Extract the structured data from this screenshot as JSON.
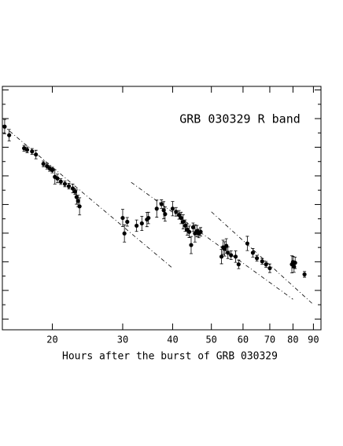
{
  "chart_data": {
    "type": "scatter",
    "title": "GRB 030329 R band",
    "x_label": "Hours after the burst of GRB 030329",
    "log_x": true,
    "xlim": [
      15,
      94
    ],
    "xticks": [
      20,
      30,
      40,
      50,
      60,
      70,
      80,
      90
    ],
    "ylim": [
      16.75,
      -0.25
    ],
    "yticks": [
      0,
      1,
      2,
      3,
      4,
      5,
      6,
      7,
      8,
      9,
      10,
      11,
      12,
      13,
      14,
      15,
      16
    ],
    "series": [
      {
        "color": "#000000",
        "x": [
          15.2,
          15.6,
          17.0,
          17.3,
          17.8,
          18.2,
          19.0,
          19.4,
          19.7,
          20.0,
          20.3,
          20.6,
          21.0,
          21.5,
          22.0,
          22.5,
          22.8,
          23.0,
          23.2,
          23.4,
          30.0,
          30.3,
          30.8,
          32.5,
          33.5,
          34.5,
          34.8,
          36.5,
          37.5,
          38.0,
          38.3,
          40.0,
          40.8,
          41.5,
          42.0,
          42.5,
          43.0,
          43.5,
          44.0,
          44.5,
          45.0,
          45.5,
          46.0,
          46.5,
          47.0,
          53.0,
          53.5,
          54.0,
          54.5,
          55.0,
          56.0,
          57.5,
          58.5,
          61.5,
          63.5,
          65.0,
          67.0,
          68.5,
          70.0,
          79.5,
          80.0,
          80.5,
          81.0,
          85.5
        ],
        "values": [
          2.56,
          3.16,
          4.07,
          4.18,
          4.29,
          4.51,
          5.16,
          5.32,
          5.48,
          5.59,
          6.07,
          6.18,
          6.4,
          6.56,
          6.72,
          6.88,
          7.1,
          7.48,
          7.75,
          8.13,
          8.94,
          10.02,
          9.21,
          9.48,
          9.32,
          9.05,
          8.94,
          8.29,
          7.97,
          8.4,
          8.67,
          8.29,
          8.51,
          8.72,
          8.94,
          9.21,
          9.48,
          9.75,
          9.91,
          10.83,
          9.59,
          10.02,
          9.86,
          10.02,
          9.91,
          11.64,
          10.99,
          11.1,
          10.89,
          11.37,
          11.54,
          11.64,
          12.18,
          10.72,
          11.37,
          11.75,
          11.97,
          12.18,
          12.45,
          12.18,
          12.02,
          12.34,
          12.07,
          12.88
        ],
        "errors": [
          0.5,
          0.4,
          0.2,
          0.2,
          0.2,
          0.3,
          0.2,
          0.2,
          0.2,
          0.2,
          0.5,
          0.3,
          0.2,
          0.2,
          0.2,
          0.3,
          0.2,
          0.5,
          0.4,
          0.6,
          0.6,
          0.6,
          0.3,
          0.4,
          0.5,
          0.5,
          0.4,
          0.6,
          0.3,
          0.6,
          0.5,
          0.5,
          0.3,
          0.3,
          0.4,
          0.5,
          0.4,
          0.4,
          0.4,
          0.6,
          0.3,
          0.6,
          0.4,
          0.3,
          0.3,
          0.5,
          0.5,
          0.5,
          0.5,
          0.4,
          0.3,
          0.4,
          0.3,
          0.5,
          0.3,
          0.2,
          0.2,
          0.2,
          0.3,
          0.6,
          0.4,
          0.4,
          0.4,
          0.2
        ]
      }
    ],
    "fit_lines": [
      {
        "x": [
          15,
          40
        ],
        "values": [
          2.45,
          12.45
        ]
      },
      {
        "x": [
          31.5,
          80
        ],
        "values": [
          6.45,
          14.62
        ]
      },
      {
        "x": [
          50,
          90
        ],
        "values": [
          8.51,
          14.99
        ]
      }
    ]
  }
}
